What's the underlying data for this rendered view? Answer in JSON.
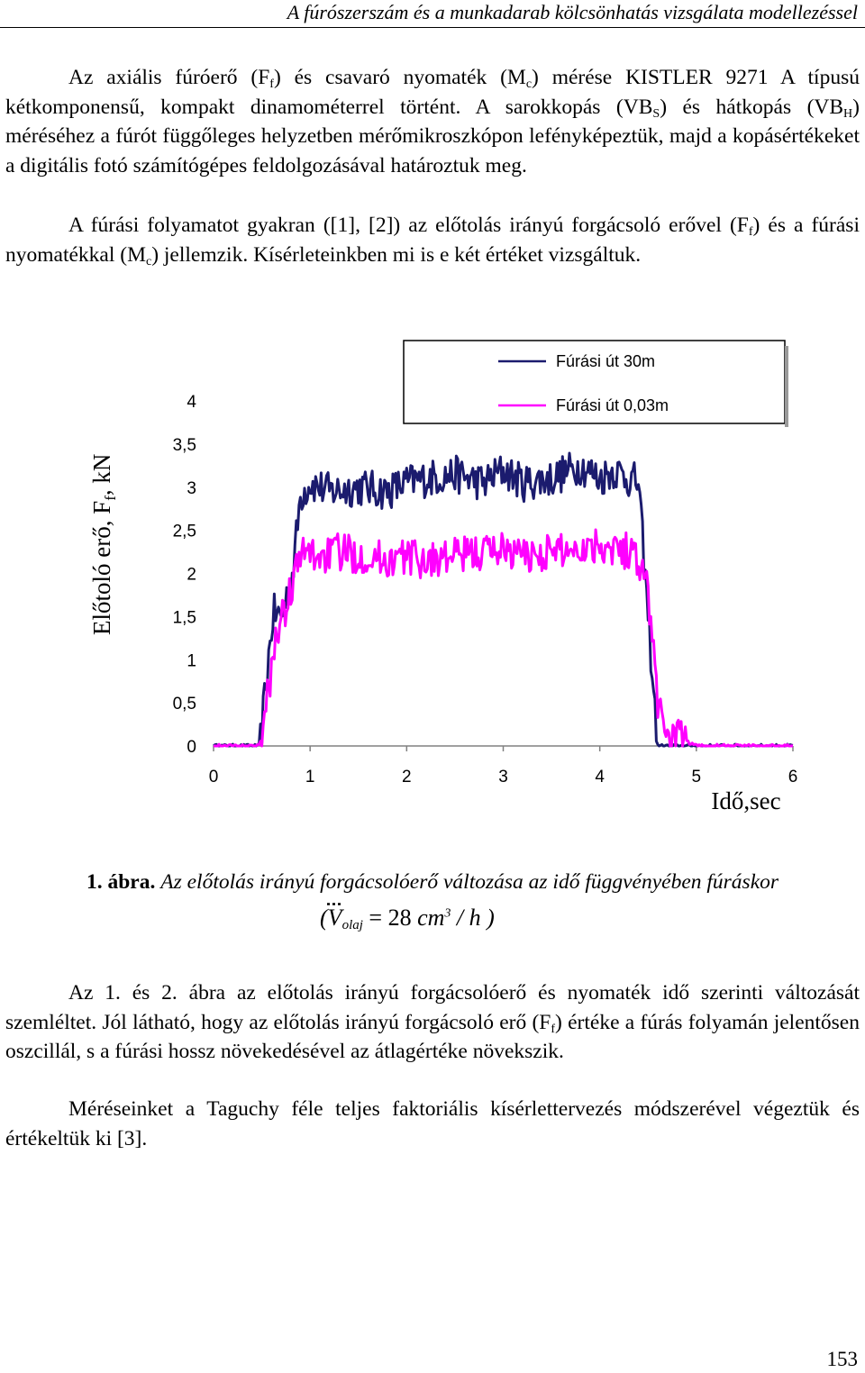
{
  "header": {
    "title": "A fúrószerszám és a munkadarab kölcsönhatás vizsgálata modellezéssel"
  },
  "para1": {
    "t1": "Az axiális fúróerő (F",
    "s1": "f",
    "t2": ") és csavaró nyomaték (M",
    "s2": "c",
    "t3": ") mérése KISTLER 9271 A típusú kétkomponensű, kompakt dinamométerrel történt. A sarokkopás (VB",
    "s3": "S",
    "t4": ") és hátkopás (VB",
    "s4": "H",
    "t5": ") méréséhez a fúrót függőleges helyzetben mérőmikroszkópon lefényképeztük, majd a kopásértékeket a digitális fotó számítógépes feldolgozásával határoztuk meg."
  },
  "para2": {
    "t1": "A fúrási folyamatot gyakran ([1], [2]) az előtolás irányú forgácsoló erővel (F",
    "s1": "f",
    "t2": ") és a fúrási nyomatékkal (M",
    "s2": "c",
    "t3": ") jellemzik. Kísérleteinkben mi is e két értéket vizsgáltuk."
  },
  "chart_data": {
    "type": "line",
    "xlabel": "Idő,sec",
    "ylabel": "Előtoló erő, F",
    "ylabel_sub": "f",
    "ylabel_unit": ", kN",
    "xlim": [
      0,
      6
    ],
    "ylim": [
      0,
      4
    ],
    "x_ticks": [
      "0",
      "1",
      "2",
      "3",
      "4",
      "5",
      "6"
    ],
    "y_ticks": [
      "0",
      "0,5",
      "1",
      "1,5",
      "2",
      "2,5",
      "3",
      "3,5",
      "4"
    ],
    "legend_position": "top-right",
    "series": [
      {
        "name": "Fúrási út 30m",
        "color": "#1b1b6e",
        "x": [
          0.0,
          0.3,
          0.48,
          0.55,
          0.62,
          0.7,
          0.82,
          0.9,
          1.0,
          1.2,
          1.5,
          1.8,
          2.0,
          2.2,
          2.5,
          2.8,
          3.0,
          3.2,
          3.5,
          3.8,
          4.0,
          4.15,
          4.3,
          4.4,
          4.5,
          4.6,
          5.0,
          6.0
        ],
        "y": [
          0.0,
          0.0,
          0.0,
          0.8,
          1.55,
          1.5,
          2.0,
          2.9,
          3.05,
          2.95,
          3.0,
          2.95,
          3.05,
          3.1,
          3.15,
          3.05,
          3.2,
          3.05,
          3.1,
          3.25,
          3.1,
          3.2,
          3.1,
          3.05,
          1.5,
          0.0,
          0.0,
          0.0
        ]
      },
      {
        "name": "Fúrási út 0,03m",
        "color": "#ff00ff",
        "x": [
          0.0,
          0.2,
          0.48,
          0.55,
          0.65,
          0.75,
          0.85,
          0.95,
          1.1,
          1.3,
          1.6,
          1.8,
          2.0,
          2.2,
          2.5,
          2.8,
          3.0,
          3.2,
          3.5,
          3.8,
          4.0,
          4.2,
          4.4,
          4.5,
          4.6,
          4.7,
          5.0,
          6.0
        ],
        "y": [
          0.0,
          0.0,
          0.0,
          0.5,
          1.3,
          1.6,
          2.05,
          2.25,
          2.2,
          2.25,
          2.2,
          2.15,
          2.2,
          2.15,
          2.2,
          2.25,
          2.3,
          2.2,
          2.25,
          2.3,
          2.35,
          2.3,
          2.2,
          1.8,
          0.5,
          0.15,
          0.0,
          0.0
        ]
      }
    ]
  },
  "caption": {
    "label": "1. ábra.",
    "text": "Az előtolás irányú forgácsolóerő változása az idő függvényében fúráskor",
    "formula_open": "(",
    "formula_v": "V",
    "formula_sub": "olaj",
    "formula_eq": " = 28 ",
    "formula_unit": "cm",
    "formula_exp": "3",
    "formula_tail": " / h )"
  },
  "para3": {
    "t1": "Az 1. és 2. ábra az előtolás irányú forgácsolóerő és nyomaték idő szerinti változását szemléltet. Jól látható, hogy az előtolás irányú forgácsoló erő (F",
    "s1": "f",
    "t2": ") értéke a fúrás folyamán jelentősen oszcillál, s a fúrási hossz növekedésével az átlagértéke növekszik."
  },
  "para4": {
    "text": "Méréseinket a Taguchy féle teljes faktoriális kísérlettervezés módszerével végeztük és értékeltük ki [3]."
  },
  "page_number": "153"
}
